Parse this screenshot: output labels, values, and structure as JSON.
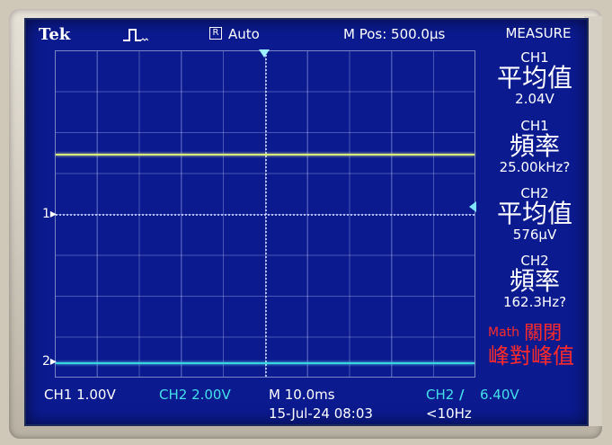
{
  "header": {
    "brand": "Tek",
    "trigger_state_icon": "trigger-waveform-icon",
    "acquire_mode_icon": "acquire-mode-icon",
    "trigger_mode": "Auto",
    "main_position": "M Pos: 500.0μs",
    "menu_title": "MEASURE"
  },
  "markers": {
    "ch1": "1▸",
    "ch2": "2▸"
  },
  "measurements": [
    {
      "channel": "CH1",
      "name": "平均值",
      "value": "2.04V"
    },
    {
      "channel": "CH1",
      "name": "頻率",
      "value": "25.00kHz?"
    },
    {
      "channel": "CH2",
      "name": "平均值",
      "value": "576μV"
    },
    {
      "channel": "CH2",
      "name": "頻率",
      "value": "162.3Hz?"
    }
  ],
  "math": {
    "label": "Math",
    "state": "關閉",
    "function": "峰對峰值"
  },
  "footer": {
    "ch1_scale": "CH1  1.00V",
    "ch2_scale": "CH2  2.00V",
    "timebase": "M 10.0ms",
    "datetime": "15-Jul-24 08:03",
    "trigger_source": "CH2",
    "trigger_slope": "∕",
    "trigger_level": "6.40V",
    "frequency_warning": "<10Hz"
  },
  "colors": {
    "screen_bg": "#0b1a8f",
    "ch1_trace": "#d8ea78",
    "ch2_trace": "#35d7e3",
    "math_text": "#ff2a2a"
  }
}
